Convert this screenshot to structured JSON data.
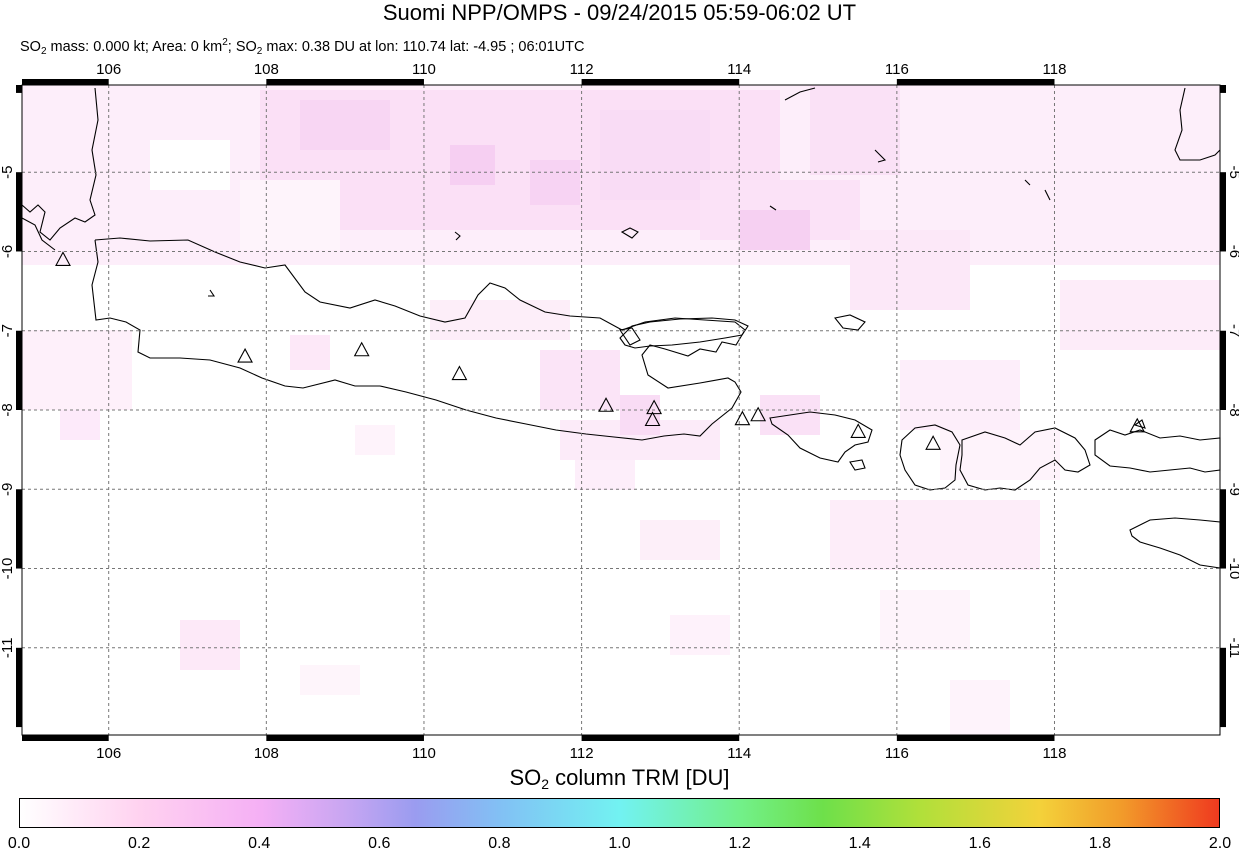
{
  "title": "Suomi NPP/OMPS - 09/24/2015 05:59-06:02 UT",
  "subtitle": {
    "mass_prefix": "SO",
    "mass_sub": "2",
    "mass_text": " mass: 0.000 kt; Area: 0 km",
    "area_sup": "2",
    "max_prefix": "; SO",
    "max_sub": "2",
    "max_text": " max: 0.38 DU at lon: 110.74 lat: -4.95 ; 06:01UTC"
  },
  "map": {
    "lon_range": [
      104.9,
      120.1
    ],
    "lat_range": [
      -12.1,
      -3.9
    ],
    "lon_ticks": [
      "106",
      "108",
      "110",
      "112",
      "114",
      "116",
      "118"
    ],
    "lat_ticks": [
      "-5",
      "-6",
      "-7",
      "-8",
      "-9",
      "-10",
      "-11"
    ],
    "grid": "dashed",
    "coastline_color": "#000000",
    "volcano_marker": "triangle-icon",
    "volcanoes": [
      {
        "lon": 105.42,
        "lat": -6.1
      },
      {
        "lon": 107.73,
        "lat": -7.32
      },
      {
        "lon": 109.21,
        "lat": -7.24
      },
      {
        "lon": 110.45,
        "lat": -7.54
      },
      {
        "lon": 112.31,
        "lat": -7.94
      },
      {
        "lon": 112.92,
        "lat": -7.97
      },
      {
        "lon": 112.9,
        "lat": -8.12
      },
      {
        "lon": 114.04,
        "lat": -8.11
      },
      {
        "lon": 114.24,
        "lat": -8.06
      },
      {
        "lon": 115.51,
        "lat": -8.27
      },
      {
        "lon": 116.46,
        "lat": -8.42
      },
      {
        "lon": 119.05,
        "lat": -8.2
      }
    ]
  },
  "colorbar": {
    "title_prefix": "SO",
    "title_sub": "2",
    "title_suffix": " column TRM [DU]",
    "min": 0.0,
    "max": 2.0,
    "labels": [
      "0.0",
      "0.2",
      "0.4",
      "0.6",
      "0.8",
      "1.0",
      "1.2",
      "1.4",
      "1.6",
      "1.8",
      "2.0"
    ]
  }
}
